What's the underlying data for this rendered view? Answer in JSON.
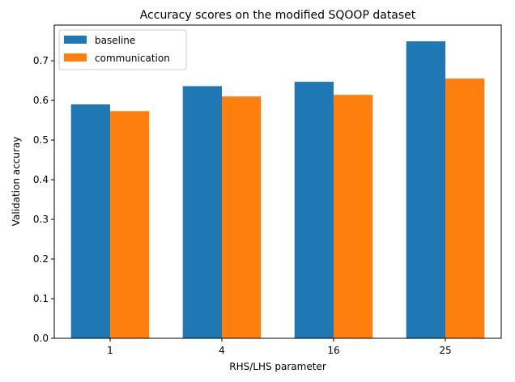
{
  "chart_data": {
    "type": "bar",
    "title": "Accuracy scores on the modified SQOOP dataset",
    "xlabel": "RHS/LHS parameter",
    "ylabel": "Validation accuray",
    "categories": [
      "1",
      "4",
      "16",
      "25"
    ],
    "series": [
      {
        "name": "baseline",
        "color": "#1f77b4",
        "values": [
          0.59,
          0.636,
          0.647,
          0.749
        ]
      },
      {
        "name": "communication",
        "color": "#ff7f0e",
        "values": [
          0.573,
          0.61,
          0.614,
          0.655
        ]
      }
    ],
    "ylim": [
      0,
      0.79
    ],
    "yticks": [
      0.0,
      0.1,
      0.2,
      0.3,
      0.4,
      0.5,
      0.6,
      0.7
    ],
    "ytick_labels": [
      "0.0",
      "0.1",
      "0.2",
      "0.3",
      "0.4",
      "0.5",
      "0.6",
      "0.7"
    ],
    "grid": false,
    "legend_position": "top-left"
  }
}
